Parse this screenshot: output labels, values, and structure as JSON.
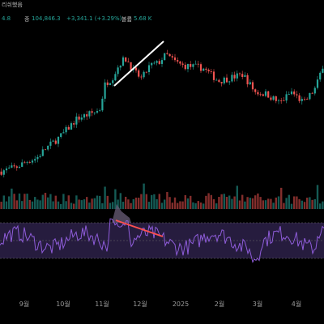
{
  "header": {
    "title_fragment": "리쉬했음",
    "price_prefix": "4.8",
    "close_label": "종",
    "close_value": "104,846.3",
    "change": "+3,341.1 (+3.29%)",
    "volume_label": "볼륨",
    "volume_value": "5.68 K"
  },
  "colors": {
    "up": "#26a69a",
    "down": "#ef5350",
    "rsi_line": "#8e5cd9",
    "rsi_band": "#2a1f45",
    "trendline_price": "#ffffff",
    "trendline_rsi": "#ff5050",
    "divergence_fill": "#6a5d78"
  },
  "chart_data": [
    {
      "type": "candlestick",
      "series": [
        {
          "name": "",
          "values": []
        }
      ],
      "x_tick_labels": [
        "9월",
        "10월",
        "11월",
        "12월",
        "2025",
        "2월",
        "3월",
        "4월"
      ],
      "grid": false,
      "trend_annotation": {
        "direction": "up",
        "color": "white",
        "period": "late 11월 to mid 12월"
      }
    },
    {
      "type": "bar",
      "subtitle": "volume",
      "values": []
    },
    {
      "type": "line",
      "subtitle": "RSI",
      "ylim": [
        0,
        100
      ],
      "band": [
        30,
        70
      ],
      "trend_annotation": {
        "direction": "down",
        "color": "red",
        "note": "bearish divergence vs price"
      }
    }
  ]
}
